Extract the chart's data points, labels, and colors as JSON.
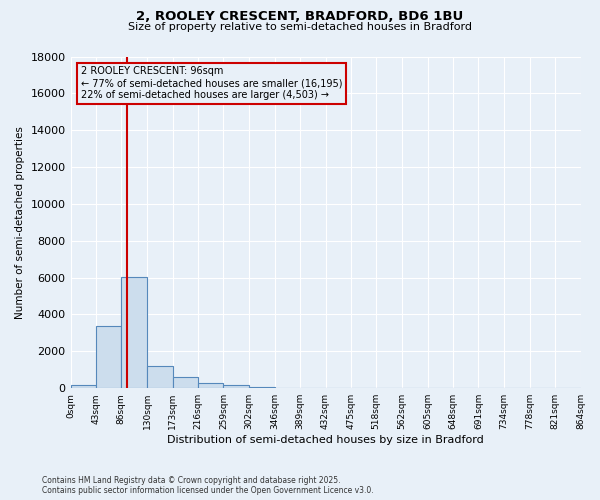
{
  "title_line1": "2, ROOLEY CRESCENT, BRADFORD, BD6 1BU",
  "title_line2": "Size of property relative to semi-detached houses in Bradford",
  "xlabel": "Distribution of semi-detached houses by size in Bradford",
  "ylabel": "Number of semi-detached properties",
  "footnote": "Contains HM Land Registry data © Crown copyright and database right 2025.\nContains public sector information licensed under the Open Government Licence v3.0.",
  "property_label": "2 ROOLEY CRESCENT: 96sqm",
  "annotation_left": "← 77% of semi-detached houses are smaller (16,195)",
  "annotation_right": "22% of semi-detached houses are larger (4,503) →",
  "property_size": 96,
  "bin_edges": [
    0,
    43,
    86,
    130,
    173,
    216,
    259,
    302,
    346,
    389,
    432,
    475,
    518,
    562,
    605,
    648,
    691,
    734,
    778,
    821,
    864
  ],
  "bar_values": [
    200,
    3400,
    6050,
    1200,
    600,
    300,
    150,
    50,
    0,
    0,
    0,
    0,
    0,
    0,
    0,
    0,
    0,
    0,
    0,
    0
  ],
  "bar_color": "#ccdded",
  "bar_edge_color": "#5588bb",
  "red_line_x": 96,
  "ylim": [
    0,
    18000
  ],
  "yticks": [
    0,
    2000,
    4000,
    6000,
    8000,
    10000,
    12000,
    14000,
    16000,
    18000
  ],
  "xlabels": [
    "0sqm",
    "43sqm",
    "86sqm",
    "130sqm",
    "173sqm",
    "216sqm",
    "259sqm",
    "302sqm",
    "346sqm",
    "389sqm",
    "432sqm",
    "475sqm",
    "518sqm",
    "562sqm",
    "605sqm",
    "648sqm",
    "691sqm",
    "734sqm",
    "778sqm",
    "821sqm",
    "864sqm"
  ],
  "annotation_box_color": "#cc0000",
  "background_color": "#e8f0f8",
  "grid_color": "#ffffff"
}
